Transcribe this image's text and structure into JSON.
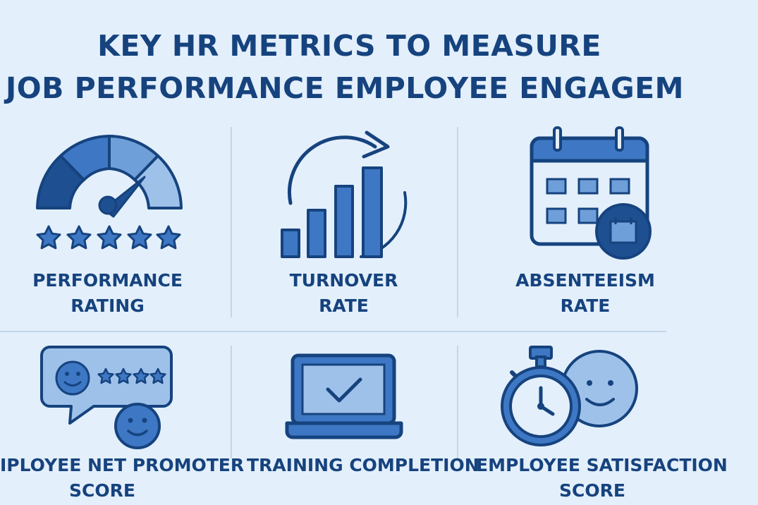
{
  "title": {
    "line1": "KEY HR METRICS TO MEASURE",
    "line2": "JOB PERFORMANCE EMPLOYEE ENGAGEM"
  },
  "metrics": [
    {
      "icon": "gauge-icon",
      "line1": "PERFORMANCE",
      "line2": "RATING",
      "rating_stars": 5
    },
    {
      "icon": "bar-chart-icon",
      "line1": "TURNOVER",
      "line2": "RATE"
    },
    {
      "icon": "calendar-icon",
      "line1": "ABSENTEEISM",
      "line2": "RATE"
    },
    {
      "icon": "feedback-bubble-icon",
      "line1": "IPLOYEE NET PROMOTER",
      "line2": "SCORE",
      "rating_stars": 4
    },
    {
      "icon": "laptop-check-icon",
      "line1": "TRAINING COMPLETION",
      "line2": ""
    },
    {
      "icon": "stopwatch-smiley-icon",
      "line1": "EMPLOYEE SATISFACTION",
      "line2": "SCORE"
    }
  ],
  "colors": {
    "background": "#e3effb",
    "text": "#16437e",
    "icon_dark": "#1d4f91",
    "icon_mid": "#3e78c4",
    "icon_light": "#9ec1ea"
  }
}
